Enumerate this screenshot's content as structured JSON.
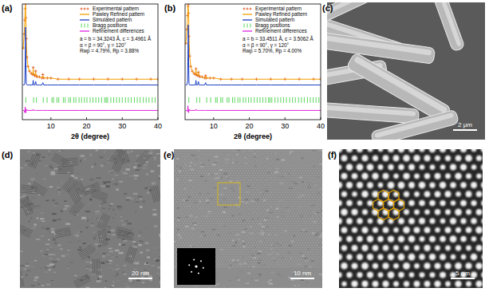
{
  "chart_data": [
    {
      "type": "line",
      "title": "(a)",
      "x_label": "2θ (degree)",
      "xlim": [
        2,
        40
      ],
      "xticks": [
        10,
        20,
        30,
        40
      ],
      "ylim": [
        0,
        100
      ],
      "tick_labels": "x",
      "legend": "upper right",
      "annotations": [
        "a = b = 34.3243 Å, c = 3.4961 Å",
        "α = β = 90°, γ = 120°",
        "Rwp = 4.79%, Rp = 3.88%"
      ],
      "series": [
        {
          "name": "Experimental pattern",
          "type": "scatter",
          "marker": "plus",
          "color": "#d9480f",
          "x": [
            2.2,
            2.5,
            2.7,
            2.8,
            2.9,
            3.0,
            3.1,
            3.3,
            3.6,
            4.0,
            4.5,
            4.9,
            5.05,
            5.2,
            5.5,
            5.75,
            5.9,
            6.2,
            6.8,
            7.5,
            7.75,
            8.0,
            9,
            10,
            12,
            15,
            18,
            22,
            26,
            30,
            34,
            38,
            40
          ],
          "values": [
            62,
            74,
            86,
            96,
            100,
            88,
            70,
            54,
            46,
            42,
            40,
            39,
            45,
            39,
            38,
            42,
            38,
            37,
            37,
            36,
            39,
            36,
            36,
            36,
            35,
            35,
            35,
            35,
            35,
            35,
            35,
            35,
            35
          ]
        },
        {
          "name": "Pawley Refined pattern",
          "type": "line",
          "color": "#f59f00",
          "x": [
            2.2,
            2.5,
            2.7,
            2.8,
            2.9,
            3.0,
            3.1,
            3.3,
            3.6,
            4.0,
            4.5,
            4.9,
            5.05,
            5.2,
            5.5,
            5.75,
            5.9,
            6.2,
            6.8,
            7.5,
            7.75,
            8.0,
            9,
            10,
            12,
            15,
            18,
            22,
            26,
            30,
            34,
            38,
            40
          ],
          "values": [
            61,
            73,
            86,
            97,
            99,
            87,
            70,
            54,
            46,
            42,
            40,
            39,
            44,
            39,
            38,
            41,
            38,
            37,
            37,
            36,
            38,
            36,
            36,
            36,
            35,
            35,
            35,
            35,
            35,
            35,
            35,
            35,
            35
          ]
        },
        {
          "name": "Simulated pattern",
          "type": "line",
          "color": "#1c3fc4",
          "x": [
            2.2,
            2.5,
            2.7,
            2.8,
            2.9,
            3.0,
            3.1,
            3.3,
            3.6,
            4.0,
            4.5,
            4.9,
            5.05,
            5.2,
            5.5,
            5.75,
            5.9,
            6.2,
            6.8,
            7.5,
            7.75,
            8.0,
            9,
            10,
            12,
            15,
            18,
            22,
            26,
            30,
            34,
            38,
            40
          ],
          "values": [
            30,
            30,
            32,
            50,
            80,
            48,
            31,
            30,
            30,
            30,
            30,
            30,
            34,
            30,
            30,
            33,
            30,
            30,
            30,
            30,
            32,
            30,
            30,
            30,
            30,
            30,
            30,
            30,
            30,
            30,
            30,
            30,
            30
          ]
        },
        {
          "name": "Bragg positions",
          "type": "tick",
          "color": "#33cc33",
          "x": [
            2.97,
            5.15,
            5.95,
            7.87,
            8.93,
            10.3,
            10.74,
            11.7,
            12.2,
            13.5,
            14.0,
            15.0,
            15.5,
            16.4,
            17.0,
            17.9,
            18.6,
            19.4,
            20.1,
            21.0,
            21.8,
            22.6,
            23.4,
            24.2,
            25.1,
            25.5,
            25.9,
            26.8,
            27.6,
            28.4,
            29.2,
            30.0,
            30.9,
            31.7,
            32.5,
            33.4,
            34.2,
            35.0,
            35.9,
            36.7,
            37.5,
            38.4,
            39.2
          ],
          "values": [
            17,
            17,
            17,
            17,
            17,
            17,
            17,
            17,
            17,
            17,
            17,
            17,
            17,
            17,
            17,
            17,
            17,
            17,
            17,
            17,
            17,
            17,
            17,
            17,
            17,
            17,
            17,
            17,
            17,
            17,
            17,
            17,
            17,
            17,
            17,
            17,
            17,
            17,
            17,
            17,
            17,
            17,
            17
          ]
        },
        {
          "name": "Refinement differences",
          "type": "line",
          "color": "#e020e0",
          "x": [
            2.2,
            2.5,
            2.7,
            2.8,
            2.9,
            3.0,
            3.1,
            3.3,
            3.6,
            4.0,
            4.5,
            4.9,
            5.05,
            5.2,
            5.5,
            5.75,
            5.9,
            6.2,
            6.8,
            7.5,
            7.75,
            8.0,
            9,
            10,
            12,
            15,
            18,
            22,
            26,
            30,
            34,
            38,
            40
          ],
          "values": [
            8,
            8,
            6,
            11,
            9,
            6,
            9,
            8,
            8,
            8,
            8,
            8,
            9,
            8,
            8,
            8,
            8,
            8,
            8,
            8,
            8,
            8,
            8,
            8,
            8,
            8,
            8,
            8,
            8,
            8,
            8,
            8,
            8
          ]
        }
      ]
    },
    {
      "type": "line",
      "title": "(b)",
      "x_label": "2θ (degree)",
      "xlim": [
        2,
        40
      ],
      "xticks": [
        10,
        20,
        30,
        40
      ],
      "ylim": [
        0,
        100
      ],
      "tick_labels": "x",
      "legend": "upper right",
      "annotations": [
        "a = b = 33.4511 Å, c = 3.5062 Å",
        "α = β = 90°, γ = 120°",
        "Rwp = 5.70%, Rp = 4.00%"
      ],
      "series": [
        {
          "name": "Experimental pattern",
          "type": "scatter",
          "marker": "plus",
          "color": "#d9480f",
          "x": [
            2.2,
            2.5,
            2.7,
            2.8,
            2.9,
            3.0,
            3.1,
            3.3,
            3.6,
            4.0,
            4.5,
            4.9,
            5.05,
            5.2,
            5.5,
            5.75,
            5.9,
            6.2,
            6.8,
            7.5,
            7.75,
            8.0,
            9,
            10,
            12,
            15,
            18,
            22,
            26,
            30,
            34,
            38,
            40
          ],
          "values": [
            66,
            78,
            90,
            98,
            100,
            92,
            72,
            55,
            46,
            42,
            40,
            39,
            44,
            39,
            38,
            41,
            38,
            37,
            37,
            36,
            38,
            36,
            36,
            36,
            35,
            35,
            35,
            35,
            35,
            35,
            35,
            35,
            35
          ]
        },
        {
          "name": "Pawley Refined pattern",
          "type": "line",
          "color": "#f59f00",
          "x": [
            2.2,
            2.5,
            2.7,
            2.8,
            2.9,
            3.0,
            3.1,
            3.3,
            3.6,
            4.0,
            4.5,
            4.9,
            5.05,
            5.2,
            5.5,
            5.75,
            5.9,
            6.2,
            6.8,
            7.5,
            7.75,
            8.0,
            9,
            10,
            12,
            15,
            18,
            22,
            26,
            30,
            34,
            38,
            40
          ],
          "values": [
            65,
            77,
            90,
            99,
            99,
            91,
            72,
            55,
            46,
            42,
            40,
            39,
            44,
            39,
            38,
            41,
            38,
            37,
            37,
            36,
            38,
            36,
            36,
            36,
            35,
            35,
            35,
            35,
            35,
            35,
            35,
            35,
            35
          ]
        },
        {
          "name": "Simulated pattern",
          "type": "line",
          "color": "#1c3fc4",
          "x": [
            2.2,
            2.5,
            2.7,
            2.8,
            2.9,
            3.0,
            3.1,
            3.3,
            3.6,
            4.0,
            4.5,
            4.9,
            5.05,
            5.2,
            5.5,
            5.75,
            5.9,
            6.2,
            6.8,
            7.5,
            7.75,
            8.0,
            9,
            10,
            12,
            15,
            18,
            22,
            26,
            30,
            34,
            38,
            40
          ],
          "values": [
            30,
            30,
            33,
            55,
            82,
            50,
            31,
            30,
            30,
            30,
            30,
            30,
            34,
            30,
            30,
            33,
            30,
            30,
            30,
            30,
            32,
            30,
            30,
            30,
            30,
            30,
            30,
            30,
            30,
            30,
            30,
            30,
            30
          ]
        },
        {
          "name": "Bragg positions",
          "type": "tick",
          "color": "#33cc33",
          "x": [
            3.05,
            5.28,
            6.1,
            8.07,
            9.16,
            10.56,
            11.0,
            12.0,
            12.5,
            13.8,
            14.3,
            15.3,
            15.9,
            16.8,
            17.4,
            18.3,
            19.0,
            19.8,
            20.5,
            21.4,
            22.2,
            23.0,
            23.8,
            24.6,
            25.4,
            25.8,
            26.3,
            27.2,
            28.0,
            28.8,
            29.6,
            30.4,
            31.3,
            32.1,
            32.9,
            33.8,
            34.6,
            35.4,
            36.3,
            37.1,
            37.9,
            38.7,
            39.5
          ],
          "values": [
            17,
            17,
            17,
            17,
            17,
            17,
            17,
            17,
            17,
            17,
            17,
            17,
            17,
            17,
            17,
            17,
            17,
            17,
            17,
            17,
            17,
            17,
            17,
            17,
            17,
            17,
            17,
            17,
            17,
            17,
            17,
            17,
            17,
            17,
            17,
            17,
            17,
            17,
            17,
            17,
            17,
            17,
            17
          ]
        },
        {
          "name": "Refinement differences",
          "type": "line",
          "color": "#e020e0",
          "x": [
            2.2,
            2.5,
            2.7,
            2.8,
            2.9,
            3.0,
            3.1,
            3.3,
            3.6,
            4.0,
            4.5,
            4.9,
            5.05,
            5.2,
            5.5,
            5.75,
            5.9,
            6.2,
            6.8,
            7.5,
            7.75,
            8.0,
            9,
            10,
            12,
            15,
            18,
            22,
            26,
            30,
            34,
            38,
            40
          ],
          "values": [
            8,
            8,
            7,
            12,
            8,
            6,
            9,
            8,
            8,
            8,
            8,
            8,
            9,
            8,
            8,
            8,
            8,
            8,
            8,
            8,
            8,
            8,
            8,
            8,
            8,
            8,
            8,
            8,
            8,
            8,
            8,
            8,
            8
          ]
        }
      ]
    }
  ],
  "images": [
    {
      "label": "(c)",
      "scale_bar": "2 μm"
    },
    {
      "label": "(d)",
      "scale_bar": "20 nm"
    },
    {
      "label": "(e)",
      "scale_bar": "10 nm"
    },
    {
      "label": "(f)",
      "scale_bar": "5 nm"
    }
  ]
}
